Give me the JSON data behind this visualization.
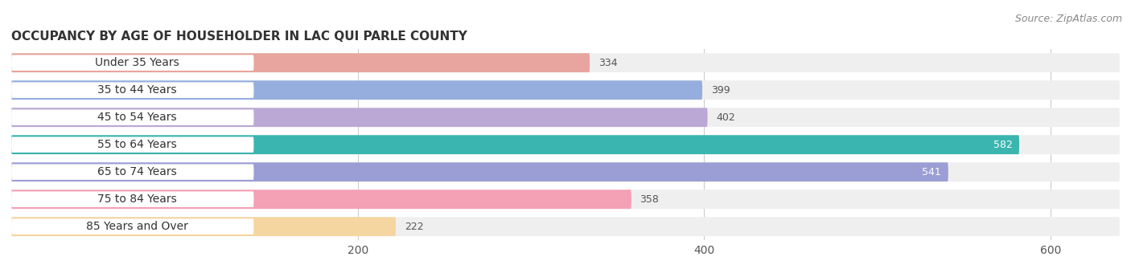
{
  "title": "OCCUPANCY BY AGE OF HOUSEHOLDER IN LAC QUI PARLE COUNTY",
  "source": "Source: ZipAtlas.com",
  "categories": [
    "Under 35 Years",
    "35 to 44 Years",
    "45 to 54 Years",
    "55 to 64 Years",
    "65 to 74 Years",
    "75 to 84 Years",
    "85 Years and Over"
  ],
  "values": [
    334,
    399,
    402,
    582,
    541,
    358,
    222
  ],
  "bar_colors": [
    "#e8a49e",
    "#96aedd",
    "#bba8d4",
    "#3ab5b0",
    "#9b9ed4",
    "#f4a0b5",
    "#f5d5a0"
  ],
  "bar_bg_color": "#efefef",
  "label_colors": [
    "#555555",
    "#555555",
    "#555555",
    "#ffffff",
    "#ffffff",
    "#555555",
    "#555555"
  ],
  "xlim_max": 640,
  "xticks": [
    200,
    400,
    600
  ],
  "title_fontsize": 11,
  "source_fontsize": 9,
  "tick_fontsize": 10,
  "label_fontsize": 10,
  "value_fontsize": 9,
  "bar_height": 0.7,
  "background_color": "#ffffff",
  "grid_color": "#cccccc"
}
